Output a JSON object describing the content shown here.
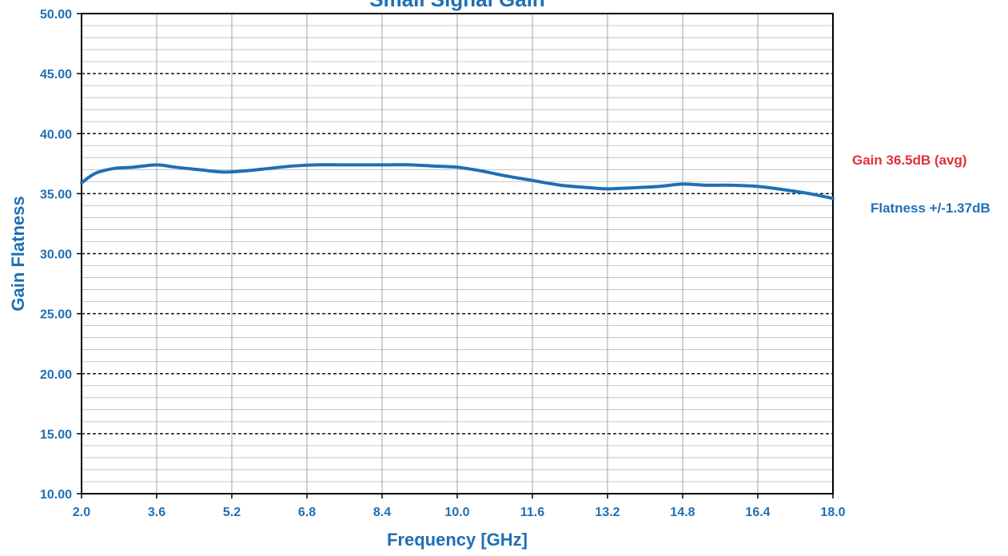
{
  "chart_data": {
    "type": "line",
    "title": "Small Signal Gain",
    "xlabel": "Frequency [GHz]",
    "ylabel": "Gain Flatness",
    "xlim": [
      2.0,
      18.0
    ],
    "ylim": [
      10.0,
      50.0
    ],
    "x_ticks": [
      "2.0",
      "3.6",
      "5.2",
      "6.8",
      "8.4",
      "10.0",
      "11.6",
      "13.2",
      "14.8",
      "16.4",
      "18.0"
    ],
    "y_ticks": [
      "50.00",
      "45.00",
      "40.00",
      "35.00",
      "30.00",
      "25.00",
      "20.00",
      "15.00",
      "10.00"
    ],
    "grid": true,
    "legend": "none",
    "series": [
      {
        "color": "#1f6fb5",
        "x": [
          2.0,
          2.3,
          2.7,
          3.1,
          3.6,
          4.0,
          4.5,
          5.0,
          5.5,
          6.0,
          6.5,
          7.0,
          7.5,
          8.0,
          8.5,
          9.0,
          9.5,
          10.0,
          10.5,
          11.0,
          11.6,
          12.2,
          12.8,
          13.2,
          13.8,
          14.3,
          14.8,
          15.3,
          15.8,
          16.4,
          17.0,
          17.5,
          18.0
        ],
        "y": [
          35.9,
          36.7,
          37.1,
          37.2,
          37.4,
          37.2,
          37.0,
          36.8,
          36.9,
          37.1,
          37.3,
          37.4,
          37.4,
          37.4,
          37.4,
          37.4,
          37.3,
          37.2,
          36.9,
          36.5,
          36.1,
          35.7,
          35.5,
          35.4,
          35.5,
          35.6,
          35.8,
          35.7,
          35.7,
          35.6,
          35.3,
          35.0,
          34.6
        ]
      }
    ],
    "annotations": [
      {
        "text": "Gain 36.5dB (avg)",
        "color": "#e0303a"
      },
      {
        "text": "Flatness +/-1.37dB",
        "color": "#1f6fb5"
      }
    ]
  }
}
